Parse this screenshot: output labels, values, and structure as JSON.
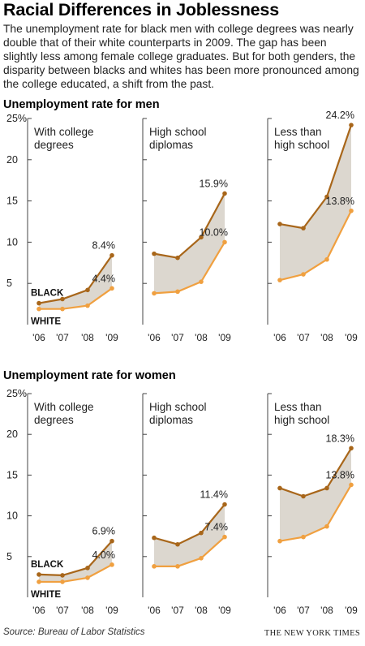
{
  "header": {
    "title": "Racial Differences in Joblessness",
    "intro": "The unemployment rate for black men with college degrees was nearly double that of their white counterparts in 2009. The gap has been slightly less among female college graduates. But for both genders, the disparity between blacks and whites has been more pronounced among the college educated, a shift from the past."
  },
  "footer": {
    "source": "Source: Bureau of Labor Statistics",
    "credit": "THE NEW YORK TIMES"
  },
  "colors": {
    "black_line": "#a8661a",
    "white_line": "#f0a040",
    "gap_fill": "#dcd7cf",
    "axis": "#444444"
  },
  "chart_data": [
    {
      "type": "line",
      "title": "Unemployment rate for men",
      "categories": [
        "'06",
        "'07",
        "'08",
        "'09"
      ],
      "ylim": [
        0,
        25
      ],
      "yticks": [
        5,
        10,
        15,
        20,
        25
      ],
      "ytick_labels": [
        "5",
        "10",
        "15",
        "20",
        "25%"
      ],
      "series_labels": {
        "black": "BLACK",
        "white": "WHITE"
      },
      "panels": [
        {
          "label": "With college\ndegrees",
          "black": [
            2.6,
            3.1,
            4.2,
            8.4
          ],
          "white": [
            1.9,
            1.9,
            2.3,
            4.4
          ],
          "end_labels": {
            "black": "8.4%",
            "white": "4.4%"
          }
        },
        {
          "label": "High school\ndiplomas",
          "black": [
            8.6,
            8.1,
            10.6,
            15.9
          ],
          "white": [
            3.8,
            4.0,
            5.2,
            10.0
          ],
          "end_labels": {
            "black": "15.9%",
            "white": "10.0%"
          }
        },
        {
          "label": "Less than\nhigh school",
          "black": [
            12.2,
            11.7,
            15.5,
            24.2
          ],
          "white": [
            5.4,
            6.1,
            7.9,
            13.8
          ],
          "end_labels": {
            "black": "24.2%",
            "white": "13.8%"
          }
        }
      ]
    },
    {
      "type": "line",
      "title": "Unemployment rate for women",
      "categories": [
        "'06",
        "'07",
        "'08",
        "'09"
      ],
      "ylim": [
        0,
        25
      ],
      "yticks": [
        5,
        10,
        15,
        20,
        25
      ],
      "ytick_labels": [
        "5",
        "10",
        "15",
        "20",
        "25%"
      ],
      "series_labels": {
        "black": "BLACK",
        "white": "WHITE"
      },
      "panels": [
        {
          "label": "With college\ndegrees",
          "black": [
            2.8,
            2.7,
            3.6,
            6.9
          ],
          "white": [
            1.9,
            1.9,
            2.4,
            4.0
          ],
          "end_labels": {
            "black": "6.9%",
            "white": "4.0%"
          }
        },
        {
          "label": "High school\ndiplomas",
          "black": [
            7.3,
            6.5,
            7.9,
            11.4
          ],
          "white": [
            3.8,
            3.8,
            4.8,
            7.4
          ],
          "end_labels": {
            "black": "11.4%",
            "white": "7.4%"
          }
        },
        {
          "label": "Less than\nhigh school",
          "black": [
            13.4,
            12.4,
            13.4,
            18.3
          ],
          "white": [
            6.9,
            7.4,
            8.7,
            13.8
          ],
          "end_labels": {
            "black": "18.3%",
            "white": "13.8%"
          }
        }
      ]
    }
  ]
}
